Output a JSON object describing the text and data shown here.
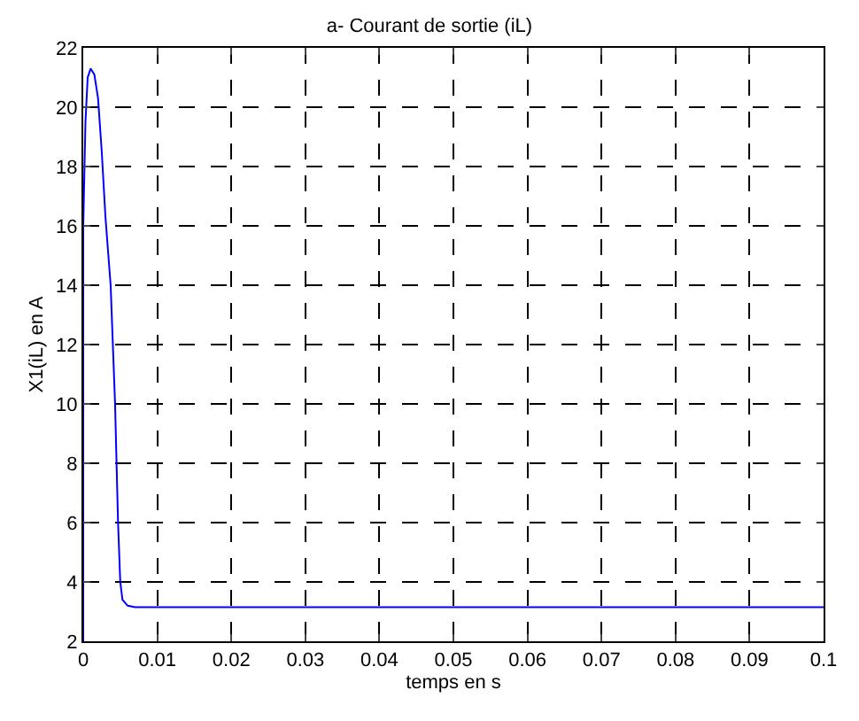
{
  "chart_data": {
    "type": "line",
    "title": "a- Courant de sortie (iL)",
    "xlabel": "temps en s",
    "ylabel": "X1(iL) en A",
    "series": [
      {
        "color": "#0000ff",
        "x": [
          0,
          0,
          0.0003,
          0.0006,
          0.001,
          0.0015,
          0.002,
          0.0025,
          0.003,
          0.0037,
          0.0043,
          0.0047,
          0.005,
          0.0053,
          0.006,
          0.007,
          0.1
        ],
        "values": [
          2,
          16,
          19.5,
          21,
          21.3,
          21.1,
          20.3,
          18.5,
          16.3,
          14,
          10,
          6,
          4,
          3.4,
          3.2,
          3.15,
          3.15
        ]
      }
    ],
    "xlim": [
      0,
      0.1
    ],
    "xticks": [
      0,
      0.01,
      0.02,
      0.03,
      0.04,
      0.05,
      0.06,
      0.07,
      0.08,
      0.09,
      0.1
    ],
    "ylim": [
      2,
      22
    ],
    "yticks": [
      2,
      4,
      6,
      8,
      10,
      12,
      14,
      16,
      18,
      20,
      22
    ],
    "grid": true,
    "line_style": "solid",
    "marker": "none",
    "legend": false
  }
}
